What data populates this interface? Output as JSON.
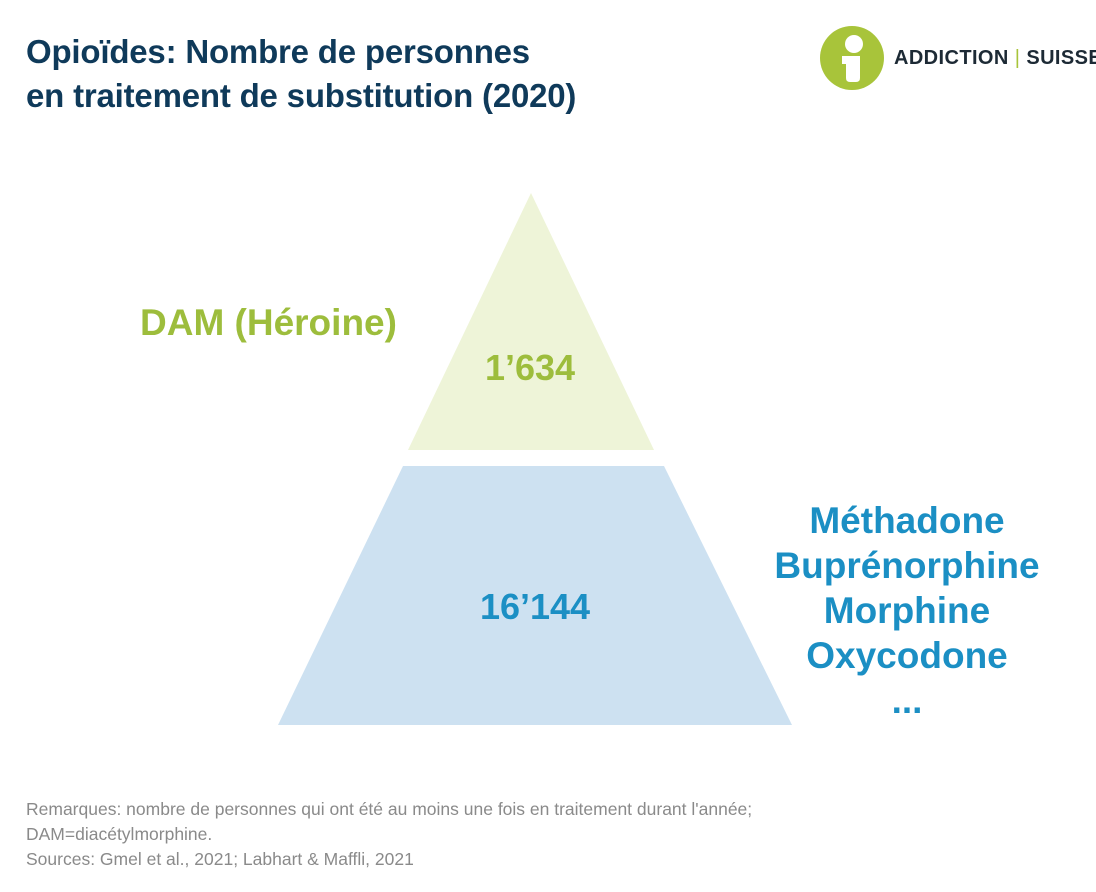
{
  "title": {
    "line1": "Opioïdes: Nombre de personnes",
    "line2": "en traitement de substitution (2020)"
  },
  "logo": {
    "word1": "ADDICTION",
    "separator": "|",
    "word2": "SUISSE",
    "icon": "person-in-circle-icon",
    "color": "#a8c43a"
  },
  "pyramid": {
    "top": {
      "label": "DAM (Héroine)",
      "value": "1’634",
      "fill": "#eef4d8",
      "text_color": "#9dbd3c"
    },
    "bottom": {
      "value": "16’144",
      "substances": [
        "Méthadone",
        "Buprénorphine",
        "Morphine",
        "Oxycodone",
        "..."
      ],
      "fill": "#cde1f1",
      "text_color": "#1b8fc4"
    }
  },
  "notes": {
    "line1": "Remarques: nombre de personnes qui ont été au moins une fois en traitement durant l'année;",
    "line2": "DAM=diacétylmorphine.",
    "line3": "Sources: Gmel et al., 2021; Labhart & Maffli, 2021"
  }
}
